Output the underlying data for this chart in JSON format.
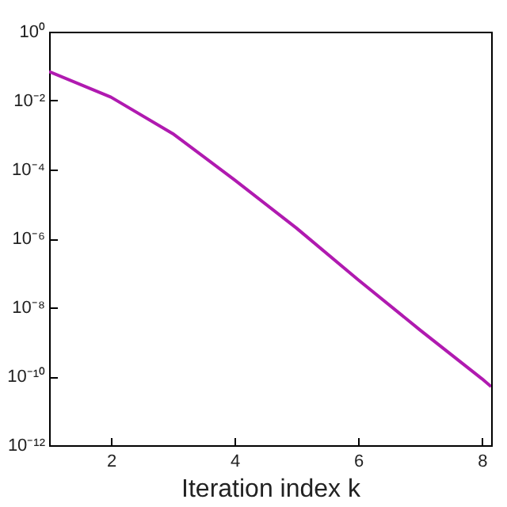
{
  "chart_data": {
    "type": "line",
    "xlabel": "Iteration  index k",
    "log": "y",
    "x": [
      1,
      2,
      3,
      4,
      5,
      6,
      7,
      8,
      8.15
    ],
    "series": [
      {
        "color": "#b01ab0",
        "values": [
          0.07,
          0.0126,
          0.0011,
          5e-05,
          2e-06,
          6.3e-08,
          2.2e-09,
          8.5e-11,
          5e-11
        ]
      }
    ],
    "xlim": [
      1,
      8.15
    ],
    "xticks": [
      2,
      4,
      6,
      8
    ],
    "ylim": [
      1e-12,
      1
    ],
    "yticks": [
      {
        "value": 1e-12,
        "label": "10⁻¹²"
      },
      {
        "value": 1e-10,
        "label": "10⁻¹⁰"
      },
      {
        "value": 1e-08,
        "label": "10⁻⁸"
      },
      {
        "value": 1e-06,
        "label": "10⁻⁶"
      },
      {
        "value": 0.0001,
        "label": "10⁻⁴"
      },
      {
        "value": 0.01,
        "label": "10⁻²"
      },
      {
        "value": 1,
        "label": "10⁰"
      }
    ],
    "grid": false,
    "marker": "none",
    "line_style": "solid"
  }
}
